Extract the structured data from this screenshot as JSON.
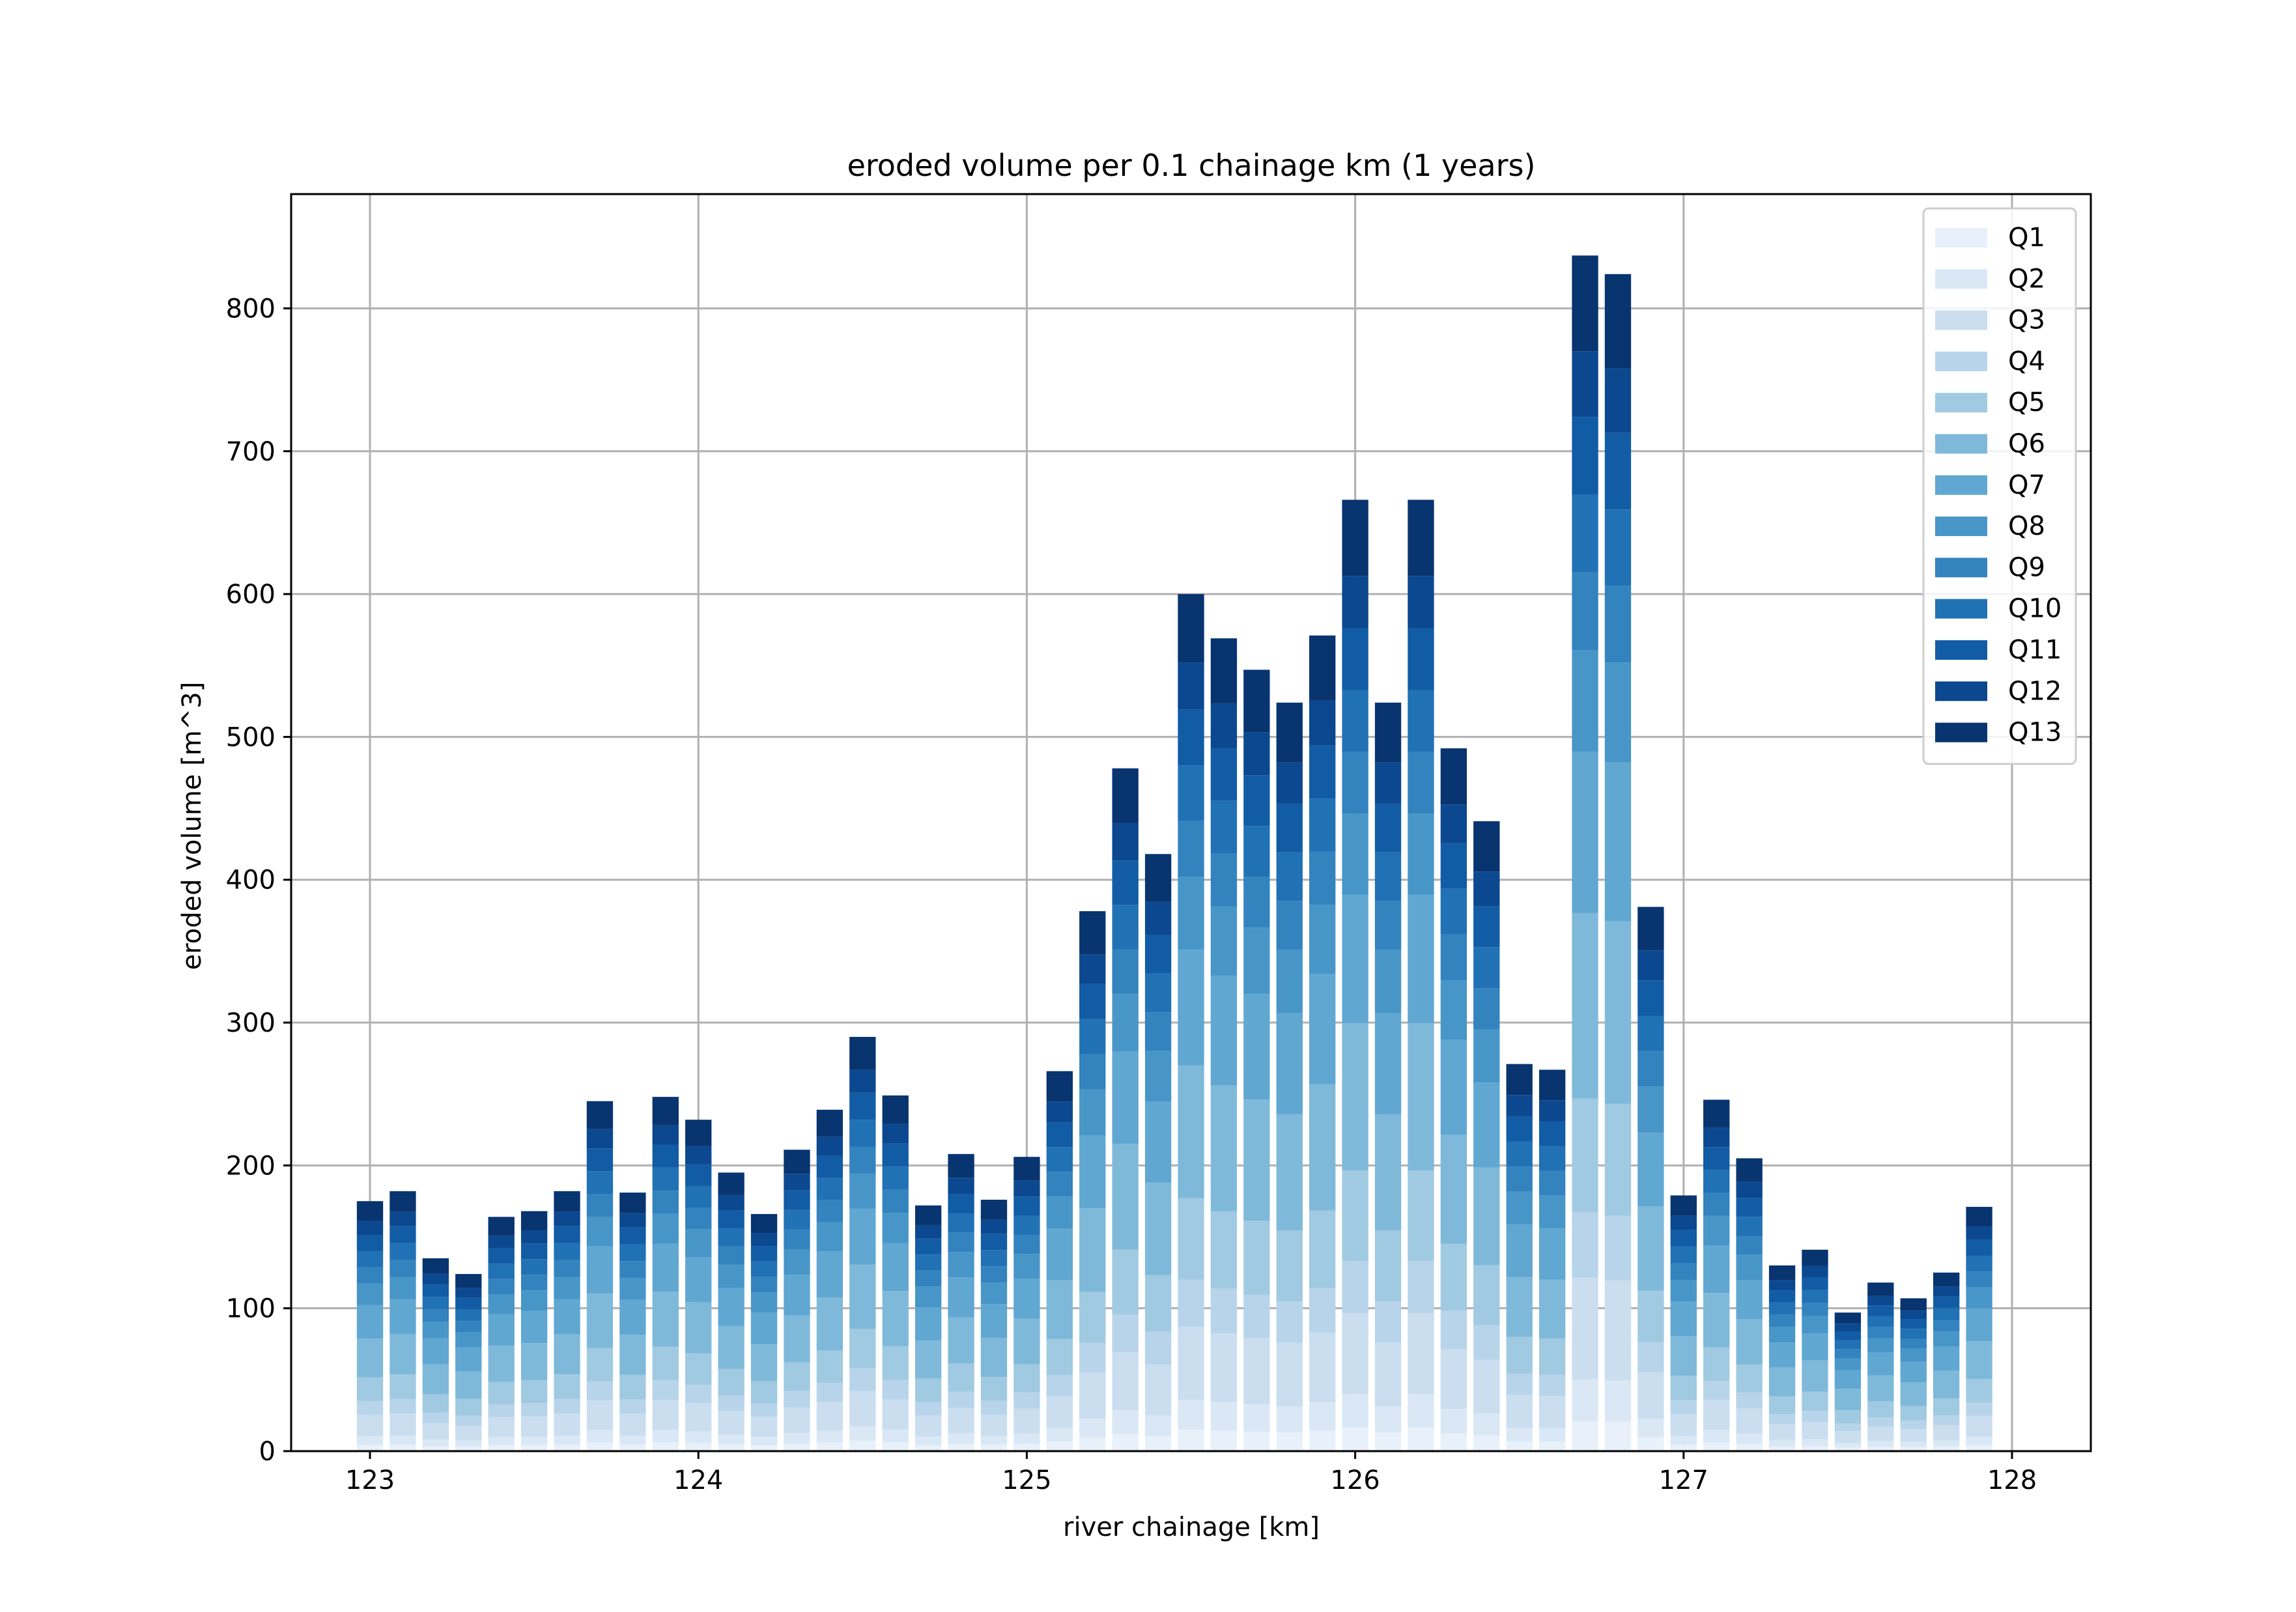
{
  "chart_data": {
    "type": "bar",
    "stacked": true,
    "title": "eroded volume per 0.1 chainage km (1 years)",
    "xlabel": "river chainage [km]",
    "ylabel": "eroded volume [m^3]",
    "xlim": [
      122.76,
      128.24
    ],
    "ylim": [
      0,
      880
    ],
    "xticks": [
      "123",
      "124",
      "125",
      "126",
      "127",
      "128"
    ],
    "yticks": [
      "0",
      "100",
      "200",
      "300",
      "400",
      "500",
      "600",
      "700",
      "800"
    ],
    "grid": true,
    "legend_position": "top-right",
    "x": [
      123.0,
      123.1,
      123.2,
      123.3,
      123.4,
      123.5,
      123.6,
      123.7,
      123.8,
      123.9,
      124.0,
      124.1,
      124.2,
      124.3,
      124.4,
      124.5,
      124.6,
      124.7,
      124.8,
      124.9,
      125.0,
      125.1,
      125.2,
      125.3,
      125.4,
      125.5,
      125.6,
      125.7,
      125.8,
      125.9,
      126.0,
      126.1,
      126.2,
      126.3,
      126.4,
      126.5,
      126.6,
      126.7,
      126.8,
      126.9,
      127.0,
      127.1,
      127.2,
      127.3,
      127.4,
      127.5,
      127.6,
      127.7,
      127.8,
      127.9
    ],
    "totals": [
      175,
      182,
      135,
      124,
      164,
      168,
      182,
      245,
      181,
      248,
      232,
      195,
      166,
      211,
      239,
      290,
      249,
      172,
      208,
      176,
      206,
      266,
      378,
      478,
      418,
      600,
      569,
      547,
      524,
      571,
      666,
      524,
      666,
      492,
      441,
      271,
      267,
      837,
      824,
      381,
      179,
      246,
      205,
      130,
      141,
      97,
      118,
      107,
      125,
      171
    ],
    "series": [
      {
        "name": "Q1",
        "color": "#e8f1fa",
        "share": 0.025
      },
      {
        "name": "Q2",
        "color": "#dae8f5",
        "share": 0.035
      },
      {
        "name": "Q3",
        "color": "#cadef0",
        "share": 0.085
      },
      {
        "name": "Q4",
        "color": "#b7d4ea",
        "share": 0.055
      },
      {
        "name": "Q5",
        "color": "#a0cae1",
        "share": 0.095
      },
      {
        "name": "Q6",
        "color": "#7fb9da",
        "share": 0.155
      },
      {
        "name": "Q7",
        "color": "#60a7d2",
        "share": 0.135
      },
      {
        "name": "Q8",
        "color": "#4896c8",
        "share": 0.085
      },
      {
        "name": "Q9",
        "color": "#3383be",
        "share": 0.065
      },
      {
        "name": "Q10",
        "color": "#2171b5",
        "share": 0.065
      },
      {
        "name": "Q11",
        "color": "#115ca5",
        "share": 0.065
      },
      {
        "name": "Q12",
        "color": "#0b488f",
        "share": 0.055
      },
      {
        "name": "Q13",
        "color": "#083470",
        "share": 0.08
      }
    ]
  }
}
